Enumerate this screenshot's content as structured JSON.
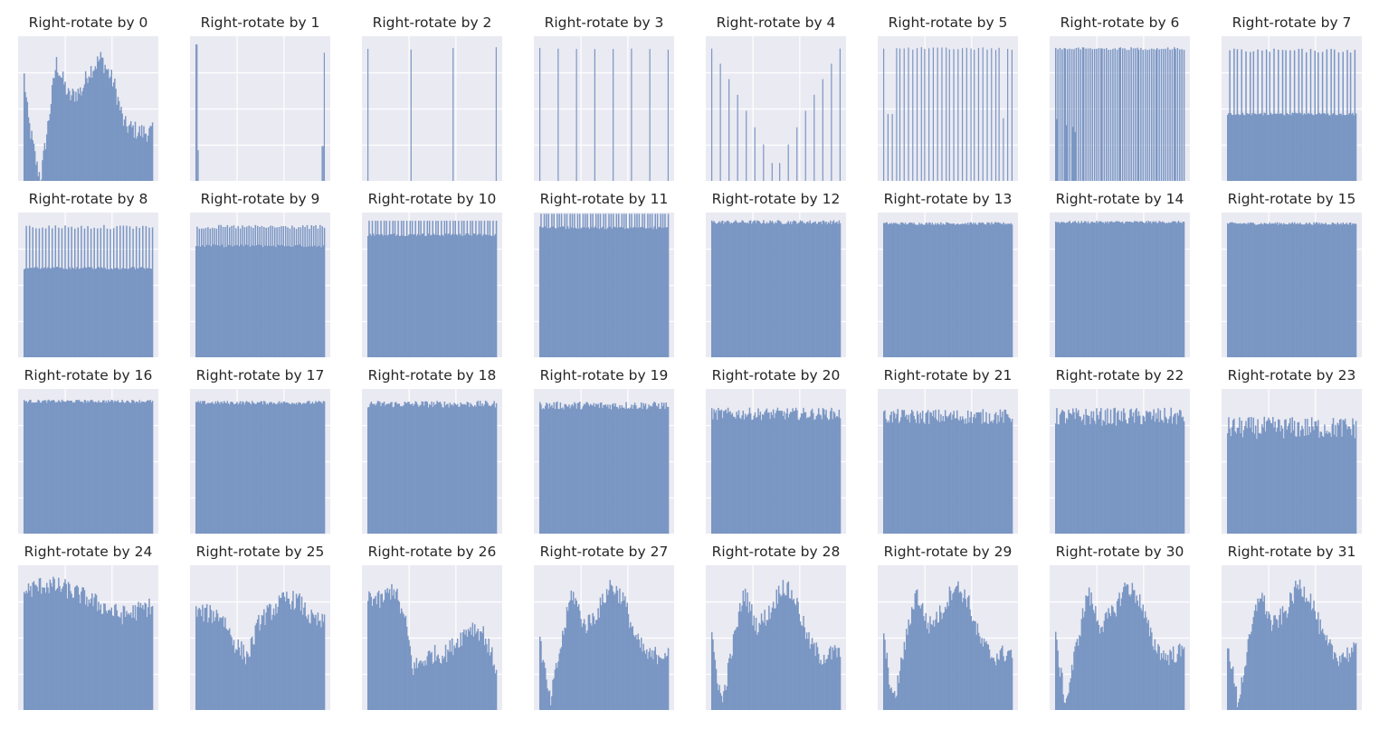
{
  "figure": {
    "rows": 4,
    "cols": 8,
    "panel_background": "#eaeaf2",
    "grid_color": "#ffffff",
    "bar_color": "#7a96c3",
    "title_color": "#262626"
  },
  "chart_data": [
    {
      "type": "bar",
      "title": "Right-rotate by 0",
      "pattern": "wave0",
      "grid": true
    },
    {
      "type": "bar",
      "title": "Right-rotate by 1",
      "pattern": "edges1",
      "grid": true
    },
    {
      "type": "bar",
      "title": "Right-rotate by 2",
      "pattern": "spikes",
      "n_spikes": 4,
      "grid": true
    },
    {
      "type": "bar",
      "title": "Right-rotate by 3",
      "pattern": "spikes",
      "n_spikes": 8,
      "grid": true
    },
    {
      "type": "bar",
      "title": "Right-rotate by 4",
      "pattern": "spikes_v",
      "n_spikes": 16,
      "grid": true
    },
    {
      "type": "bar",
      "title": "Right-rotate by 5",
      "pattern": "spikes",
      "n_spikes": 32,
      "grid": true
    },
    {
      "type": "bar",
      "title": "Right-rotate by 6",
      "pattern": "comb",
      "n_spikes": 64,
      "grid": true
    },
    {
      "type": "bar",
      "title": "Right-rotate by 7",
      "pattern": "plateau_spikes",
      "base": 0.48,
      "n_spikes": 32,
      "grid": true
    },
    {
      "type": "bar",
      "title": "Right-rotate by 8",
      "pattern": "plateau_spikes",
      "base": 0.64,
      "n_spikes": 40,
      "grid": true
    },
    {
      "type": "bar",
      "title": "Right-rotate by 9",
      "pattern": "plateau_spikes",
      "base": 0.8,
      "n_spikes": 60,
      "grid": true
    },
    {
      "type": "bar",
      "title": "Right-rotate by 10",
      "pattern": "plateau_spikes",
      "base": 0.88,
      "n_spikes": 45,
      "grid": true
    },
    {
      "type": "bar",
      "title": "Right-rotate by 11",
      "pattern": "plateau_spikes",
      "base": 0.93,
      "n_spikes": 50,
      "grid": true
    },
    {
      "type": "bar",
      "title": "Right-rotate by 12",
      "pattern": "flat",
      "level": 0.97,
      "noise": 0.015,
      "grid": true
    },
    {
      "type": "bar",
      "title": "Right-rotate by 13",
      "pattern": "flat",
      "level": 0.96,
      "noise": 0.01,
      "grid": true
    },
    {
      "type": "bar",
      "title": "Right-rotate by 14",
      "pattern": "flat",
      "level": 0.97,
      "noise": 0.01,
      "grid": true
    },
    {
      "type": "bar",
      "title": "Right-rotate by 15",
      "pattern": "flat",
      "level": 0.96,
      "noise": 0.01,
      "grid": true
    },
    {
      "type": "bar",
      "title": "Right-rotate by 16",
      "pattern": "flat",
      "level": 0.95,
      "noise": 0.012,
      "grid": true
    },
    {
      "type": "bar",
      "title": "Right-rotate by 17",
      "pattern": "flat",
      "level": 0.94,
      "noise": 0.014,
      "grid": true
    },
    {
      "type": "bar",
      "title": "Right-rotate by 18",
      "pattern": "flat",
      "level": 0.93,
      "noise": 0.025,
      "grid": true
    },
    {
      "type": "bar",
      "title": "Right-rotate by 19",
      "pattern": "flat",
      "level": 0.92,
      "noise": 0.03,
      "grid": true
    },
    {
      "type": "bar",
      "title": "Right-rotate by 20",
      "pattern": "flat",
      "level": 0.86,
      "noise": 0.045,
      "grid": true
    },
    {
      "type": "bar",
      "title": "Right-rotate by 21",
      "pattern": "flat",
      "level": 0.84,
      "noise": 0.055,
      "grid": true
    },
    {
      "type": "bar",
      "title": "Right-rotate by 22",
      "pattern": "flat",
      "level": 0.84,
      "noise": 0.065,
      "grid": true
    },
    {
      "type": "bar",
      "title": "Right-rotate by 23",
      "pattern": "flat",
      "level": 0.76,
      "noise": 0.08,
      "grid": true
    },
    {
      "type": "bar",
      "title": "Right-rotate by 24",
      "pattern": "wave24",
      "grid": true
    },
    {
      "type": "bar",
      "title": "Right-rotate by 25",
      "pattern": "wave25",
      "grid": true
    },
    {
      "type": "bar",
      "title": "Right-rotate by 26",
      "pattern": "wave26",
      "grid": true
    },
    {
      "type": "bar",
      "title": "Right-rotate by 27",
      "pattern": "wave27",
      "grid": true
    },
    {
      "type": "bar",
      "title": "Right-rotate by 28",
      "pattern": "wave27",
      "grid": true
    },
    {
      "type": "bar",
      "title": "Right-rotate by 29",
      "pattern": "wave27",
      "grid": true
    },
    {
      "type": "bar",
      "title": "Right-rotate by 30",
      "pattern": "wave27",
      "grid": true
    },
    {
      "type": "bar",
      "title": "Right-rotate by 31",
      "pattern": "wave27",
      "grid": true
    }
  ]
}
